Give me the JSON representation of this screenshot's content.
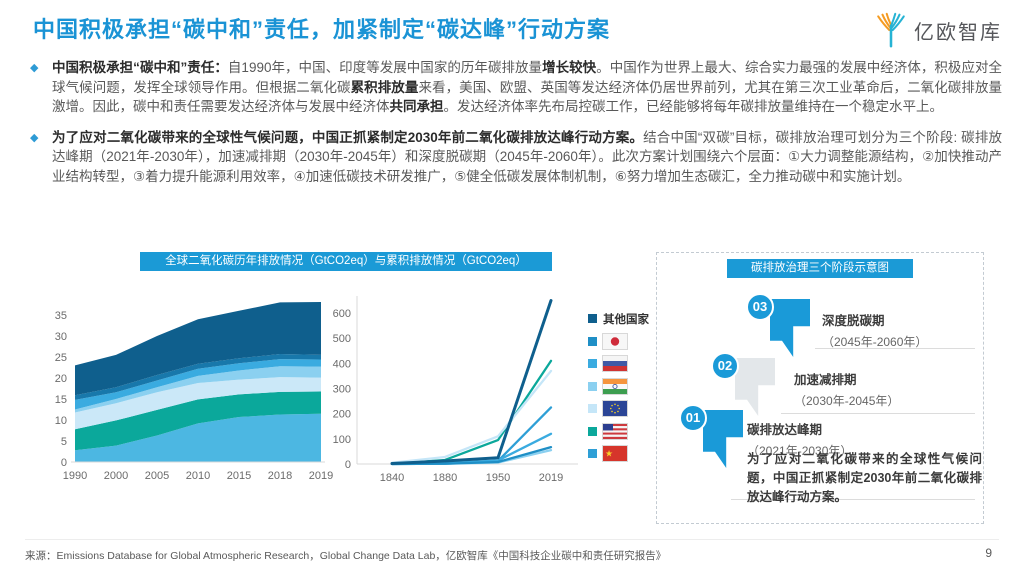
{
  "header": {
    "title": "中国积极承担“碳中和”责任，加紧制定“碳达峰”行动方案",
    "logo_text": "亿欧智库"
  },
  "bullets": [
    {
      "segments": [
        {
          "text": "中国积极承担“碳中和”责任：",
          "bold": true
        },
        {
          "text": "自1990年，中国、印度等发展中国家的历年碳排放量",
          "bold": false
        },
        {
          "text": "增长较快",
          "bold": true
        },
        {
          "text": "。中国作为世界上最大、综合实力最强的发展中经济体，积极应对全球气候问题，发挥全球领导作用。但根据二氧化碳",
          "bold": false
        },
        {
          "text": "累积排放量",
          "bold": true
        },
        {
          "text": "来看，美国、欧盟、英国等发达经济体仍居世界前列，尤其在第三次工业革命后，二氧化碳排放量激增。因此，碳中和责任需要发达经济体与发展中经济体",
          "bold": false
        },
        {
          "text": "共同承担",
          "bold": true
        },
        {
          "text": "。发达经济体率先布局控碳工作，已经能够将每年碳排放量维持在一个稳定水平上。",
          "bold": false
        }
      ]
    },
    {
      "segments": [
        {
          "text": "为了应对二氧化碳带来的全球性气候问题，中国正抓紧制定2030年前二氧化碳排放达峰行动方案。",
          "bold": true
        },
        {
          "text": "结合中国“双碳”目标，碳排放治理可划分为三个阶段: 碳排放达峰期（2021年-2030年），加速减排期（2030年-2045年）和深度脱碳期（2045年-2060年）。此次方案计划围绕六个层面：①大力调整能源结构，②加快推动产业结构转型，③着力提升能源利用效率，④加速低碳技术研发推广，⑤健全低碳发展体制机制，⑥努力增加生态碳汇，全力推动碳中和实施计划。",
          "bold": false
        }
      ]
    }
  ],
  "chart_data": [
    {
      "type": "area",
      "stacked": true,
      "title": "全球二氧化碳历年排放情况（GtCO2eq）与累积排放情况（GtCO2eq）",
      "categories": [
        "1990",
        "2000",
        "2005",
        "2010",
        "2015",
        "2018",
        "2019"
      ],
      "series": [
        {
          "name": "中国",
          "flag": "cn",
          "color": "#4cb7e2",
          "values": [
            2.8,
            3.9,
            6.3,
            9.2,
            10.7,
            11.3,
            11.5
          ]
        },
        {
          "name": "美国",
          "flag": "us",
          "color": "#0ba89b",
          "values": [
            5.0,
            6.0,
            6.1,
            5.7,
            5.4,
            5.4,
            5.3
          ]
        },
        {
          "name": "欧盟",
          "flag": "eu",
          "color": "#cbe8f8",
          "values": [
            4.0,
            4.1,
            4.2,
            3.9,
            3.5,
            3.5,
            3.3
          ]
        },
        {
          "name": "印度",
          "flag": "in",
          "color": "#8bd0f0",
          "values": [
            0.7,
            1.0,
            1.2,
            1.7,
            2.2,
            2.6,
            2.6
          ]
        },
        {
          "name": "俄罗斯",
          "flag": "ru",
          "color": "#3aabe0",
          "values": [
            2.3,
            1.6,
            1.6,
            1.7,
            1.7,
            1.7,
            1.7
          ]
        },
        {
          "name": "日本",
          "flag": "jp",
          "color": "#1878ab",
          "values": [
            1.1,
            1.2,
            1.3,
            1.2,
            1.2,
            1.2,
            1.1
          ]
        },
        {
          "name": "其他国家",
          "flag": null,
          "color": "#0f5f8d",
          "values": [
            7.1,
            7.7,
            9.3,
            10.6,
            11.3,
            12.3,
            12.6
          ]
        }
      ],
      "y_ticks": [
        0,
        5,
        10,
        15,
        20,
        25,
        30,
        35
      ],
      "y_max": 40,
      "grid": false,
      "legend_position": "none"
    },
    {
      "type": "line",
      "title": "累积排放情况（GtCO2eq）",
      "categories": [
        "1840",
        "1880",
        "1950",
        "2019"
      ],
      "series": [
        {
          "name": "其他国家",
          "flag": null,
          "color": "#0f5f8d",
          "values": [
            2,
            12,
            25,
            650
          ]
        },
        {
          "name": "日本",
          "flag": "jp",
          "color": "#1f8fc6",
          "values": [
            0,
            1,
            8,
            67
          ]
        },
        {
          "name": "俄罗斯",
          "flag": "ru",
          "color": "#3aabe0",
          "values": [
            0,
            3,
            14,
            120
          ]
        },
        {
          "name": "印度",
          "flag": "in",
          "color": "#8bd0f0",
          "values": [
            0,
            1,
            6,
            55
          ]
        },
        {
          "name": "欧盟",
          "flag": "eu",
          "color": "#c5e6f8",
          "values": [
            5,
            28,
            110,
            370
          ]
        },
        {
          "name": "美国",
          "flag": "us",
          "color": "#0ba89b",
          "values": [
            1,
            16,
            95,
            410
          ]
        },
        {
          "name": "中国",
          "flag": "cn",
          "color": "#2e9fd6",
          "values": [
            0,
            1,
            12,
            225
          ]
        }
      ],
      "y_ticks": [
        0,
        100,
        200,
        300,
        400,
        500,
        600
      ],
      "y_max": 660,
      "grid": false,
      "legend_position": "right"
    }
  ],
  "stage_diagram": {
    "title": "碳排放治理三个阶段示意图",
    "steps": [
      {
        "num": "03",
        "name": "深度脱碳期",
        "period": "（2045年-2060年）",
        "style": "blue"
      },
      {
        "num": "02",
        "name": "加速减排期",
        "period": "（2030年-2045年）",
        "style": "gray"
      },
      {
        "num": "01",
        "name": "碳排放达峰期",
        "period": "（2021年-2030年）",
        "style": "blue"
      }
    ],
    "note": "为了应对二氧化碳带来的全球性气候问题，中国正抓紧制定2030年前二氧化碳排放达峰行动方案。"
  },
  "footer": {
    "source": "来源：Emissions Database for Global Atmospheric Research，Global Change Data Lab，亿欧智库《中国科技企业碳中和责任研究报告》",
    "page": "9"
  },
  "colors": {
    "accent_blue": "#1b9ad6",
    "title_blue": "#1a93d5",
    "navy": "#0f5f8d",
    "teal": "#0ba89b",
    "step_gray": "#e3e7ea",
    "body_text": "#595959"
  }
}
